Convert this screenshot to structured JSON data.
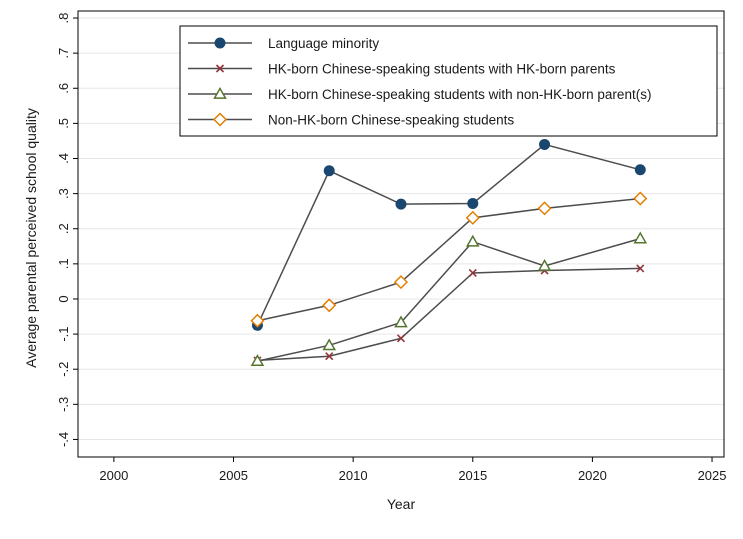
{
  "chart_data": {
    "type": "line",
    "title": "",
    "xlabel": "Year",
    "ylabel": "Average parental perceived school quality",
    "xlim": [
      1998.5,
      2025.5
    ],
    "ylim": [
      -0.45,
      0.82
    ],
    "xticks": [
      2000,
      2005,
      2010,
      2015,
      2020,
      2025
    ],
    "xtick_labels": [
      "2000",
      "2005",
      "2010",
      "2015",
      "2020",
      "2025"
    ],
    "yticks": [
      -0.4,
      -0.3,
      -0.2,
      -0.1,
      0,
      0.1,
      0.2,
      0.3,
      0.4,
      0.5,
      0.6,
      0.7,
      0.8
    ],
    "ytick_labels": [
      "-.4",
      "-.3",
      "-.2",
      "-.1",
      "0",
      ".1",
      ".2",
      ".3",
      ".4",
      ".5",
      ".6",
      ".7",
      ".8"
    ],
    "grid": true,
    "legend_position": "top-right",
    "x": [
      2006,
      2009,
      2012,
      2015,
      2018,
      2022
    ],
    "series": [
      {
        "name": "Language minority",
        "marker": "circle",
        "color": "#1a476f",
        "values": [
          -0.075,
          0.365,
          0.27,
          0.272,
          0.44,
          0.368
        ]
      },
      {
        "name": "HK-born Chinese-speaking students with HK-born parents",
        "marker": "x",
        "color": "#90353b",
        "values": [
          -0.175,
          -0.163,
          -0.112,
          0.074,
          0.081,
          0.087
        ]
      },
      {
        "name": "HK-born Chinese-speaking students with non-HK-born parent(s)",
        "marker": "triangle",
        "color": "#55752f",
        "values": [
          -0.177,
          -0.132,
          -0.067,
          0.163,
          0.094,
          0.172
        ]
      },
      {
        "name": "Non-HK-born Chinese-speaking students",
        "marker": "diamond",
        "color": "#e37e00",
        "values": [
          -0.062,
          -0.018,
          0.048,
          0.231,
          0.258,
          0.286
        ]
      }
    ],
    "line_color": "#4d4d4d"
  }
}
